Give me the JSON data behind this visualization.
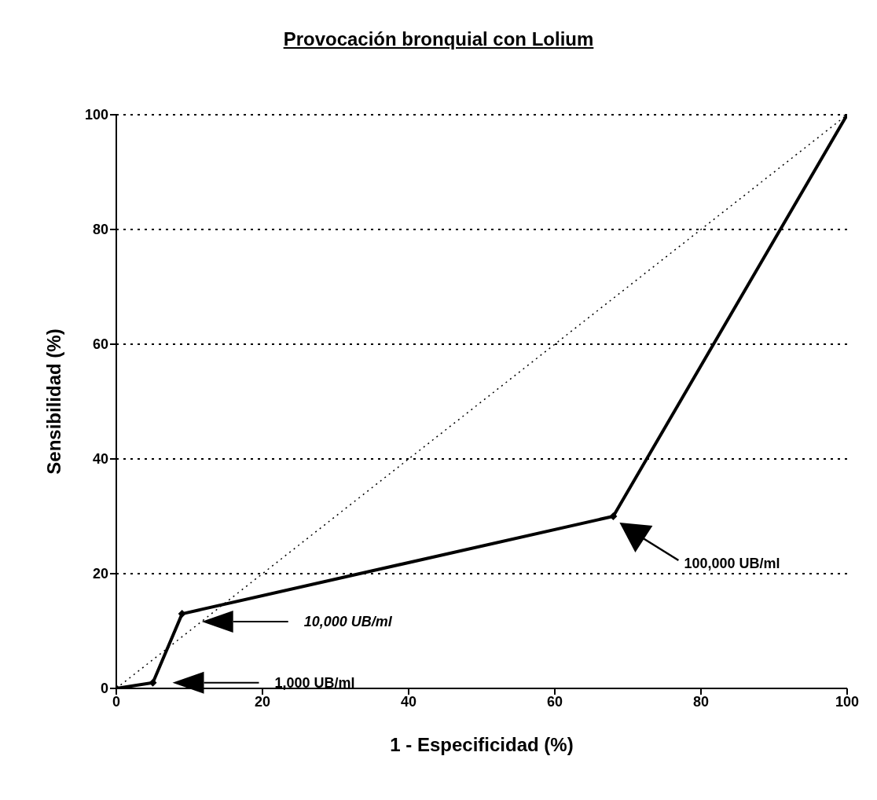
{
  "chart_data": {
    "type": "line",
    "title": "Provocación bronquial con Lolium",
    "xlabel": "1 - Especificidad (%)",
    "ylabel": "Sensibilidad (%)",
    "xlim": [
      0,
      100
    ],
    "xticks": [
      0,
      20,
      40,
      60,
      80,
      100
    ],
    "ylim": [
      0,
      100
    ],
    "yticks": [
      0,
      20,
      40,
      60,
      80,
      100
    ],
    "grid": "y",
    "series": [
      {
        "x": [
          0,
          5,
          9,
          68,
          100
        ],
        "values": [
          0,
          1,
          13,
          30,
          100
        ],
        "color": "#000000",
        "marker": "diamond",
        "line_style": "solid"
      },
      {
        "x": [
          0,
          100
        ],
        "values": [
          0,
          100
        ],
        "color": "#000000",
        "marker": "none",
        "line_style": "dotted"
      }
    ],
    "annotations": [
      "1,000 UB/ml",
      "10,000 UB/ml",
      "100,000 UB/ml"
    ]
  }
}
